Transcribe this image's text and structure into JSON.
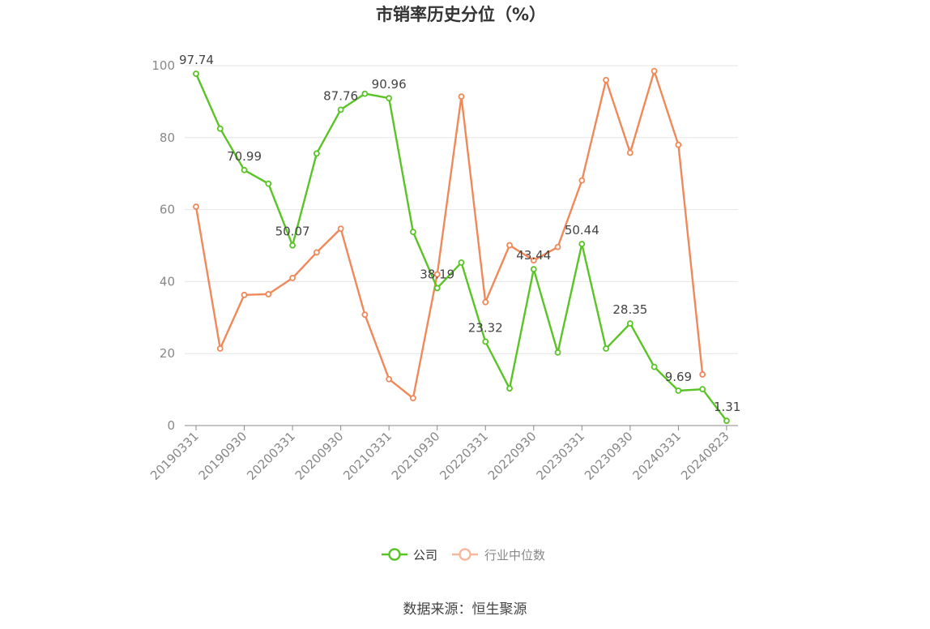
{
  "chart_data": {
    "type": "line",
    "title": "市销率历史分位（%）",
    "source": "数据来源：恒生聚源",
    "x": [
      "20190331",
      "20190630",
      "20190930",
      "20191231",
      "20200331",
      "20200630",
      "20200930",
      "20201231",
      "20210331",
      "20210630",
      "20210930",
      "20211231",
      "20220331",
      "20220630",
      "20220930",
      "20221231",
      "20230331",
      "20230630",
      "20230930",
      "20231231",
      "20240331",
      "20240630",
      "20240823"
    ],
    "x_tick_labels": [
      "20190331",
      "20190930",
      "20200331",
      "20200930",
      "20210331",
      "20210930",
      "20220331",
      "20220930",
      "20230331",
      "20230930",
      "20240331",
      "20240823"
    ],
    "ylim": [
      0,
      100
    ],
    "yticks": [
      0,
      20,
      40,
      60,
      80,
      100
    ],
    "grid": true,
    "legend_position": "bottom",
    "series": [
      {
        "name": "公司",
        "color": "#5ac427",
        "values": [
          97.74,
          82.5,
          70.99,
          67.2,
          50.07,
          75.6,
          87.76,
          92.2,
          90.96,
          53.8,
          38.19,
          45.3,
          23.32,
          10.3,
          43.44,
          20.3,
          50.44,
          21.4,
          28.35,
          16.3,
          9.69,
          10.1,
          1.31
        ],
        "labels": {
          "0": "97.74",
          "2": "70.99",
          "4": "50.07",
          "6": "87.76",
          "8": "90.96",
          "10": "38.19",
          "12": "23.32",
          "14": "43.44",
          "16": "50.44",
          "18": "28.35",
          "20": "9.69",
          "22": "1.31"
        }
      },
      {
        "name": "行业中位数",
        "color": "#f0895a",
        "legend_color": "#f6b89c",
        "values": [
          60.8,
          21.4,
          36.3,
          36.5,
          41.0,
          48.1,
          54.7,
          30.8,
          12.9,
          7.6,
          42.0,
          91.4,
          34.3,
          50.1,
          45.9,
          49.6,
          68.1,
          96.0,
          75.8,
          98.5,
          78.0,
          14.2,
          null
        ]
      }
    ]
  }
}
